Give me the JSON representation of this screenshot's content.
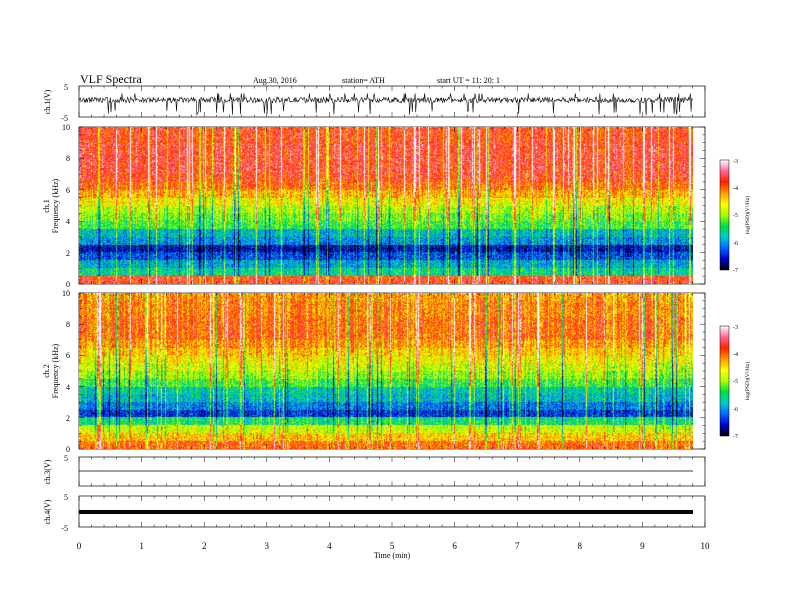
{
  "header": {
    "title": "VLF  Spectra",
    "date": "Aug.30, 2016",
    "station": "station= ATH",
    "start": "start  UT  =    11: 20: 1"
  },
  "x_axis": {
    "label": "Time  (min)",
    "range": [
      0,
      10
    ],
    "ticks": [
      "0",
      "1",
      "2",
      "3",
      "4",
      "5",
      "6",
      "7",
      "8",
      "9",
      "10"
    ]
  },
  "panels": {
    "ch1_wave": {
      "ylabel": "ch.1(V)",
      "ylim": [
        -5,
        5
      ],
      "tick_labels": [
        "5",
        "-5"
      ]
    },
    "ch1_spec": {
      "ylabel_line1": "ch.1",
      "ylabel_line2": "Frequency  (kHz)",
      "ylim": [
        0,
        10
      ],
      "tick_labels": [
        "0",
        "2",
        "4",
        "6",
        "8",
        "10"
      ]
    },
    "ch2_spec": {
      "ylabel_line1": "ch.2",
      "ylabel_line2": "Frequency  (kHz)",
      "ylim": [
        0,
        10
      ],
      "tick_labels": [
        "0",
        "2",
        "4",
        "6",
        "8",
        "10"
      ]
    },
    "ch3_wave": {
      "ylabel": "ch.3(V)",
      "ylim": [
        -5,
        5
      ],
      "tick_labels": [
        "5"
      ]
    },
    "ch4_wave": {
      "ylabel": "ch.4(V)",
      "ylim": [
        -5,
        5
      ],
      "tick_labels": [
        "5",
        "-5"
      ]
    }
  },
  "colorbar": {
    "label": "log(PSD)(V²/Hz)",
    "range": [
      -7,
      -3
    ],
    "tick_labels": [
      "-3",
      "-4",
      "-5",
      "-6",
      "-7"
    ],
    "colors": [
      "#000000",
      "#0000cc",
      "#0066ff",
      "#00cccc",
      "#00dd44",
      "#aaff00",
      "#ffff00",
      "#ff9900",
      "#ff2200",
      "#ff6699",
      "#ffffff"
    ]
  },
  "chart_data": {
    "type": "heatmap",
    "title": "VLF  Spectra",
    "xlabel": "Time  (min)",
    "ylabel": "Frequency  (kHz)",
    "xlim": [
      0,
      9.8
    ],
    "ylim": [
      0,
      10
    ],
    "value_range": [
      -7,
      -3
    ],
    "colorscale": "rainbow",
    "series": [
      {
        "name": "ch.1",
        "freq_khz": [
          0.25,
          0.75,
          1.25,
          1.75,
          2.25,
          2.75,
          3.25,
          3.75,
          4.25,
          4.75,
          5.25,
          5.75,
          6.25,
          6.75,
          7.25,
          7.75,
          8.25,
          8.75,
          9.25,
          9.75
        ],
        "typical_log_psd": [
          -3.8,
          -5.6,
          -5.9,
          -6.3,
          -6.6,
          -6.0,
          -5.8,
          -5.3,
          -5.1,
          -4.9,
          -4.6,
          -4.3,
          -4.0,
          -3.8,
          -3.7,
          -3.7,
          -3.7,
          -3.7,
          -3.8,
          -3.8
        ]
      },
      {
        "name": "ch.2",
        "freq_khz": [
          0.25,
          0.75,
          1.25,
          1.75,
          2.25,
          2.75,
          3.25,
          3.75,
          4.25,
          4.75,
          5.25,
          5.75,
          6.25,
          6.75,
          7.25,
          7.75,
          8.25,
          8.75,
          9.25,
          9.75
        ],
        "typical_log_psd": [
          -4.0,
          -4.4,
          -4.8,
          -5.5,
          -6.4,
          -6.1,
          -5.8,
          -5.7,
          -5.3,
          -5.0,
          -4.8,
          -4.6,
          -4.4,
          -4.2,
          -4.0,
          -4.0,
          -4.0,
          -4.1,
          -4.1,
          -4.2
        ]
      }
    ],
    "waveforms": [
      {
        "name": "ch.1(V)",
        "baseline_v": 0.5,
        "amplitude_v": 1.5,
        "spike_min_v": -4.5
      },
      {
        "name": "ch.3(V)",
        "baseline_v": 0,
        "amplitude_v": 0
      },
      {
        "name": "ch.4(V)",
        "baseline_v": 0,
        "amplitude_v": 0
      }
    ]
  }
}
